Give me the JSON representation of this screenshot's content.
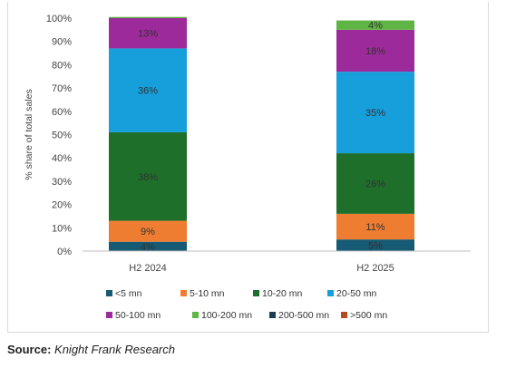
{
  "colors": {
    "<5 mn": "#175a73",
    "5-10 mn": "#ef7d31",
    "10-20 mn": "#1d6f2a",
    "20-50 mn": "#169fdb",
    "50-100 mn": "#9c2a9b",
    "100-200 mn": "#5fb544",
    "200-500 mn": "#1c3e50",
    ">500 mn": "#b54b1a"
  },
  "chart_data": {
    "type": "bar",
    "stacked": true,
    "title": "",
    "xlabel": "",
    "ylabel": "% share of total sales",
    "ylim": [
      0,
      100
    ],
    "yticks": [
      "0%",
      "10%",
      "20%",
      "30%",
      "40%",
      "50%",
      "60%",
      "70%",
      "80%",
      "90%",
      "100%"
    ],
    "categories": [
      "H2 2024",
      "H2 2025"
    ],
    "series": [
      {
        "name": "<5 mn",
        "values": [
          4,
          5
        ],
        "labels": [
          "4%",
          "5%"
        ]
      },
      {
        "name": "5-10 mn",
        "values": [
          9,
          11
        ],
        "labels": [
          "9%",
          "11%"
        ]
      },
      {
        "name": "10-20 mn",
        "values": [
          38,
          26
        ],
        "labels": [
          "38%",
          "26%"
        ]
      },
      {
        "name": "20-50 mn",
        "values": [
          36,
          35
        ],
        "labels": [
          "36%",
          "35%"
        ]
      },
      {
        "name": "50-100 mn",
        "values": [
          13,
          18
        ],
        "labels": [
          "13%",
          "18%"
        ]
      },
      {
        "name": "100-200 mn",
        "values": [
          0.5,
          4
        ],
        "labels": [
          "",
          "4%"
        ]
      },
      {
        "name": "200-500 mn",
        "values": [
          0,
          0
        ],
        "labels": [
          "",
          ""
        ]
      },
      {
        "name": ">500 mn",
        "values": [
          0,
          0
        ],
        "labels": [
          "",
          ""
        ]
      }
    ],
    "legend_position": "bottom",
    "grid": false
  },
  "source": {
    "label": "Source:",
    "text": "Knight Frank Research"
  }
}
